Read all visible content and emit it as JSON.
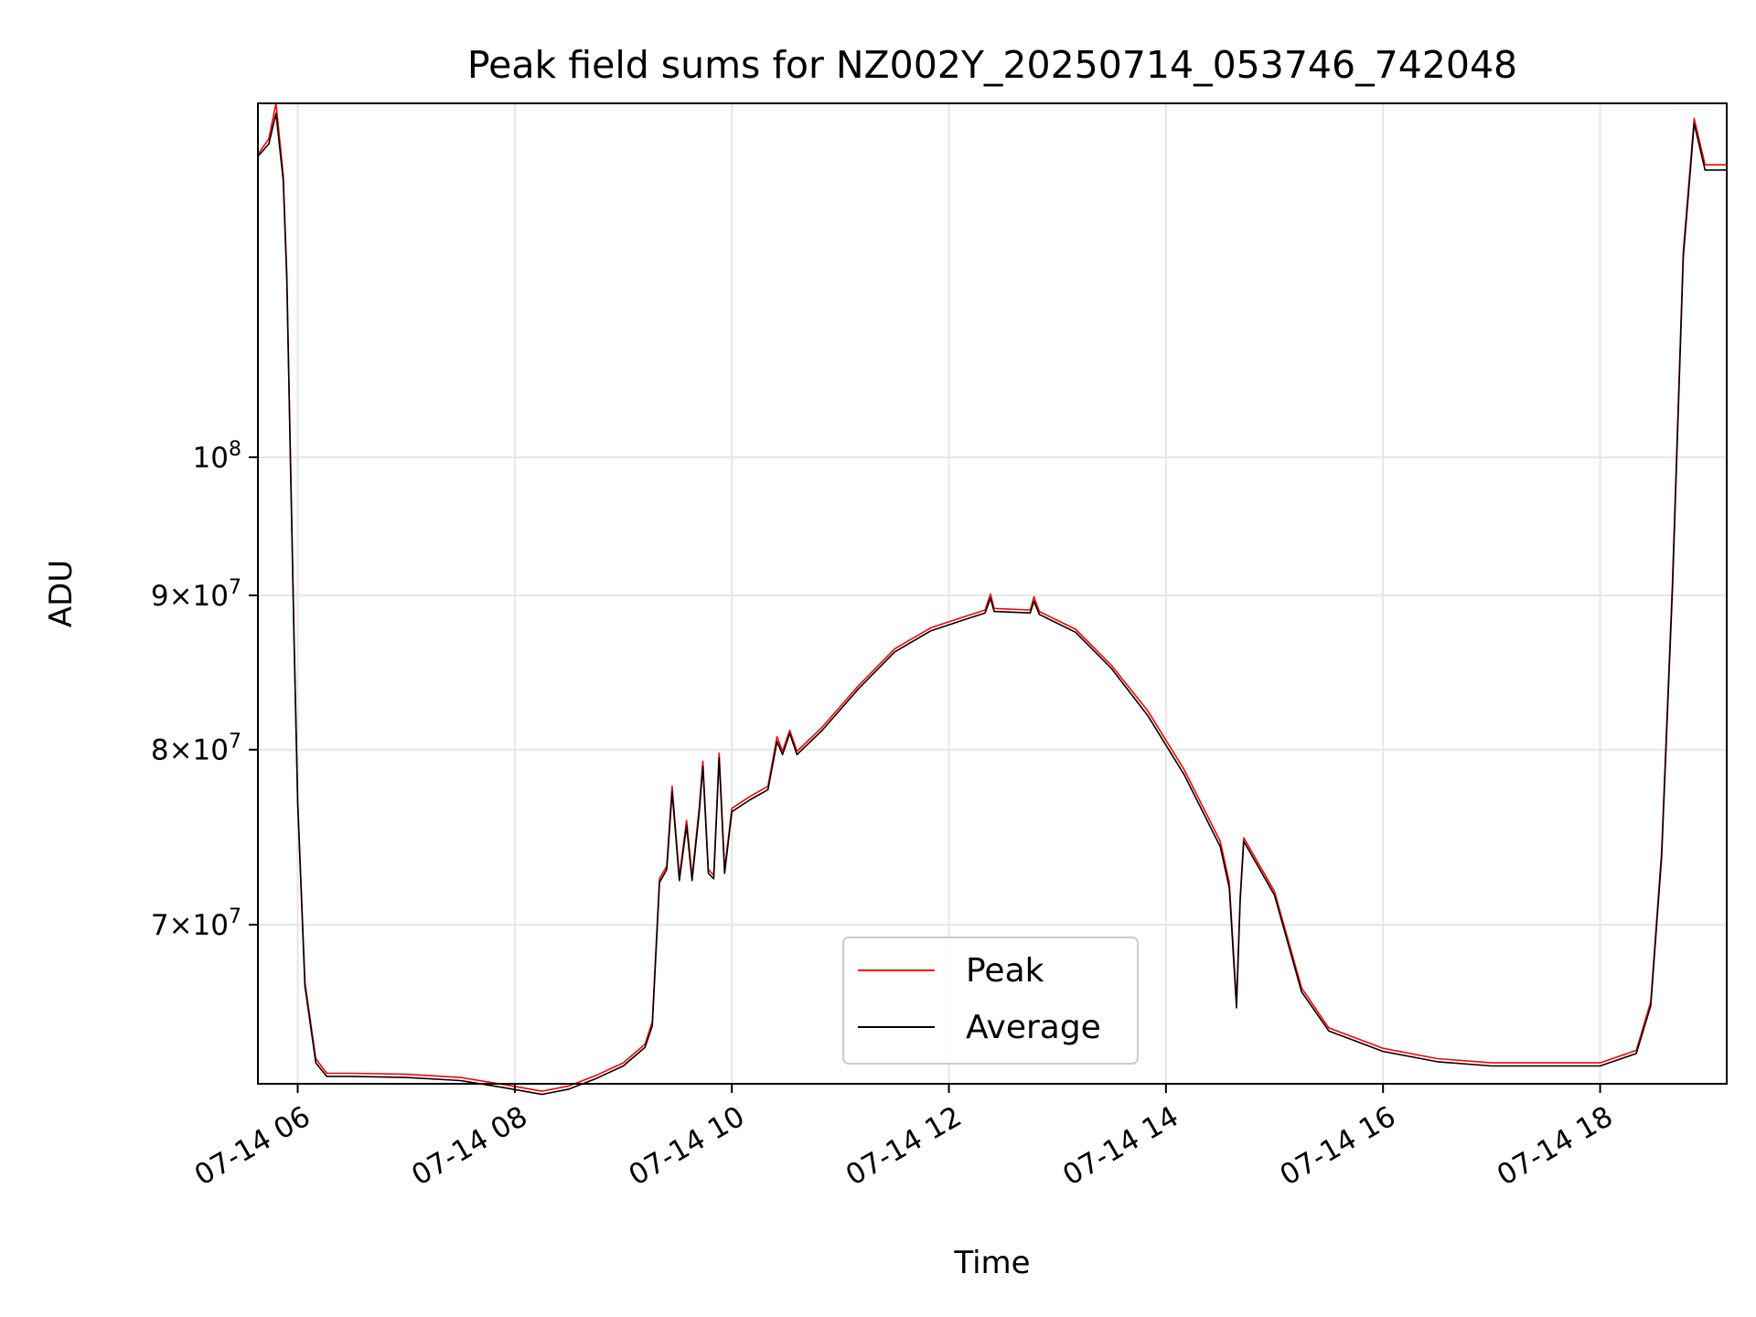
{
  "chart_data": {
    "type": "line",
    "title": "Peak field sums for NZ002Y_20250714_053746_742048",
    "xlabel": "Time",
    "ylabel": "ADU",
    "y_scale": "log",
    "ylim": [
      62000000,
      131000000
    ],
    "xlim": [
      "2025-07-14 05:38",
      "2025-07-14 19:10"
    ],
    "grid": true,
    "legend_position": "lower center",
    "x_ticks": [
      {
        "t": "2025-07-14 06:00",
        "label": "07-14 06"
      },
      {
        "t": "2025-07-14 08:00",
        "label": "07-14 08"
      },
      {
        "t": "2025-07-14 10:00",
        "label": "07-14 10"
      },
      {
        "t": "2025-07-14 12:00",
        "label": "07-14 12"
      },
      {
        "t": "2025-07-14 14:00",
        "label": "07-14 14"
      },
      {
        "t": "2025-07-14 16:00",
        "label": "07-14 16"
      },
      {
        "t": "2025-07-14 18:00",
        "label": "07-14 18"
      }
    ],
    "y_ticks": [
      {
        "v": 70000000,
        "mant": "7",
        "exp": "7"
      },
      {
        "v": 80000000,
        "mant": "8",
        "exp": "7"
      },
      {
        "v": 90000000,
        "mant": "9",
        "exp": "7"
      },
      {
        "v": 100000000,
        "mant": "",
        "exp": "8"
      }
    ],
    "series": [
      {
        "name": "Peak",
        "color": "#ff0000",
        "points": [
          [
            "2025-07-14 05:38",
            126000000
          ],
          [
            "2025-07-14 05:44",
            127500000
          ],
          [
            "2025-07-14 05:48",
            131000000
          ],
          [
            "2025-07-14 05:52",
            124000000
          ],
          [
            "2025-07-14 05:54",
            115000000
          ],
          [
            "2025-07-14 05:56",
            100000000
          ],
          [
            "2025-07-14 05:58",
            87000000
          ],
          [
            "2025-07-14 06:00",
            77000000
          ],
          [
            "2025-07-14 06:04",
            67000000
          ],
          [
            "2025-07-14 06:10",
            63200000
          ],
          [
            "2025-07-14 06:16",
            62500000
          ],
          [
            "2025-07-14 06:30",
            62500000
          ],
          [
            "2025-07-14 07:00",
            62450000
          ],
          [
            "2025-07-14 07:30",
            62300000
          ],
          [
            "2025-07-14 07:55",
            61950000
          ],
          [
            "2025-07-14 08:15",
            61650000
          ],
          [
            "2025-07-14 08:30",
            61900000
          ],
          [
            "2025-07-14 08:45",
            62400000
          ],
          [
            "2025-07-14 09:00",
            63000000
          ],
          [
            "2025-07-14 09:12",
            63900000
          ],
          [
            "2025-07-14 09:16",
            65000000
          ],
          [
            "2025-07-14 09:20",
            72500000
          ],
          [
            "2025-07-14 09:24",
            73200000
          ],
          [
            "2025-07-14 09:27",
            77800000
          ],
          [
            "2025-07-14 09:31",
            72600000
          ],
          [
            "2025-07-14 09:35",
            75800000
          ],
          [
            "2025-07-14 09:38",
            72600000
          ],
          [
            "2025-07-14 09:42",
            76600000
          ],
          [
            "2025-07-14 09:44",
            79300000
          ],
          [
            "2025-07-14 09:47",
            73000000
          ],
          [
            "2025-07-14 09:50",
            72700000
          ],
          [
            "2025-07-14 09:53",
            79800000
          ],
          [
            "2025-07-14 09:56",
            73000000
          ],
          [
            "2025-07-14 10:00",
            76500000
          ],
          [
            "2025-07-14 10:10",
            77200000
          ],
          [
            "2025-07-14 10:20",
            77800000
          ],
          [
            "2025-07-14 10:25",
            80800000
          ],
          [
            "2025-07-14 10:28",
            79900000
          ],
          [
            "2025-07-14 10:32",
            81200000
          ],
          [
            "2025-07-14 10:36",
            79900000
          ],
          [
            "2025-07-14 10:50",
            81400000
          ],
          [
            "2025-07-14 11:10",
            84000000
          ],
          [
            "2025-07-14 11:30",
            86400000
          ],
          [
            "2025-07-14 11:50",
            87800000
          ],
          [
            "2025-07-14 12:10",
            88600000
          ],
          [
            "2025-07-14 12:20",
            89000000
          ],
          [
            "2025-07-14 12:23",
            90100000
          ],
          [
            "2025-07-14 12:25",
            89100000
          ],
          [
            "2025-07-14 12:45",
            89000000
          ],
          [
            "2025-07-14 12:47",
            89900000
          ],
          [
            "2025-07-14 12:50",
            88900000
          ],
          [
            "2025-07-14 13:10",
            87700000
          ],
          [
            "2025-07-14 13:30",
            85300000
          ],
          [
            "2025-07-14 13:50",
            82400000
          ],
          [
            "2025-07-14 14:10",
            78800000
          ],
          [
            "2025-07-14 14:30",
            74600000
          ],
          [
            "2025-07-14 14:35",
            72300000
          ],
          [
            "2025-07-14 14:39",
            66000000
          ],
          [
            "2025-07-14 14:41",
            71500000
          ],
          [
            "2025-07-14 14:43",
            74800000
          ],
          [
            "2025-07-14 15:00",
            71800000
          ],
          [
            "2025-07-14 15:15",
            66700000
          ],
          [
            "2025-07-14 15:30",
            64700000
          ],
          [
            "2025-07-14 16:00",
            63700000
          ],
          [
            "2025-07-14 16:30",
            63200000
          ],
          [
            "2025-07-14 17:00",
            63000000
          ],
          [
            "2025-07-14 17:30",
            63000000
          ],
          [
            "2025-07-14 18:00",
            63000000
          ],
          [
            "2025-07-14 18:20",
            63600000
          ],
          [
            "2025-07-14 18:28",
            66000000
          ],
          [
            "2025-07-14 18:34",
            74000000
          ],
          [
            "2025-07-14 18:40",
            91000000
          ],
          [
            "2025-07-14 18:46",
            117000000
          ],
          [
            "2025-07-14 18:52",
            129500000
          ],
          [
            "2025-07-14 18:58",
            125000000
          ],
          [
            "2025-07-14 19:10",
            125000000
          ]
        ]
      },
      {
        "name": "Average",
        "color": "#000000",
        "points": [
          [
            "2025-07-14 05:38",
            125800000
          ],
          [
            "2025-07-14 05:44",
            127000000
          ],
          [
            "2025-07-14 05:48",
            130000000
          ],
          [
            "2025-07-14 05:52",
            123500000
          ],
          [
            "2025-07-14 05:54",
            114500000
          ],
          [
            "2025-07-14 05:56",
            99500000
          ],
          [
            "2025-07-14 05:58",
            86700000
          ],
          [
            "2025-07-14 06:00",
            76800000
          ],
          [
            "2025-07-14 06:04",
            66800000
          ],
          [
            "2025-07-14 06:10",
            63000000
          ],
          [
            "2025-07-14 06:16",
            62350000
          ],
          [
            "2025-07-14 06:30",
            62350000
          ],
          [
            "2025-07-14 07:00",
            62300000
          ],
          [
            "2025-07-14 07:30",
            62150000
          ],
          [
            "2025-07-14 07:55",
            61800000
          ],
          [
            "2025-07-14 08:15",
            61500000
          ],
          [
            "2025-07-14 08:30",
            61750000
          ],
          [
            "2025-07-14 08:45",
            62250000
          ],
          [
            "2025-07-14 09:00",
            62850000
          ],
          [
            "2025-07-14 09:12",
            63750000
          ],
          [
            "2025-07-14 09:16",
            64800000
          ],
          [
            "2025-07-14 09:20",
            72300000
          ],
          [
            "2025-07-14 09:24",
            73000000
          ],
          [
            "2025-07-14 09:27",
            77500000
          ],
          [
            "2025-07-14 09:31",
            72400000
          ],
          [
            "2025-07-14 09:35",
            75500000
          ],
          [
            "2025-07-14 09:38",
            72400000
          ],
          [
            "2025-07-14 09:42",
            76300000
          ],
          [
            "2025-07-14 09:44",
            79000000
          ],
          [
            "2025-07-14 09:47",
            72800000
          ],
          [
            "2025-07-14 09:50",
            72500000
          ],
          [
            "2025-07-14 09:53",
            79500000
          ],
          [
            "2025-07-14 09:56",
            72800000
          ],
          [
            "2025-07-14 10:00",
            76300000
          ],
          [
            "2025-07-14 10:10",
            77000000
          ],
          [
            "2025-07-14 10:20",
            77600000
          ],
          [
            "2025-07-14 10:25",
            80500000
          ],
          [
            "2025-07-14 10:28",
            79700000
          ],
          [
            "2025-07-14 10:32",
            81000000
          ],
          [
            "2025-07-14 10:36",
            79700000
          ],
          [
            "2025-07-14 10:50",
            81200000
          ],
          [
            "2025-07-14 11:10",
            83800000
          ],
          [
            "2025-07-14 11:30",
            86200000
          ],
          [
            "2025-07-14 11:50",
            87600000
          ],
          [
            "2025-07-14 12:10",
            88400000
          ],
          [
            "2025-07-14 12:20",
            88800000
          ],
          [
            "2025-07-14 12:23",
            89800000
          ],
          [
            "2025-07-14 12:25",
            88900000
          ],
          [
            "2025-07-14 12:45",
            88800000
          ],
          [
            "2025-07-14 12:47",
            89600000
          ],
          [
            "2025-07-14 12:50",
            88700000
          ],
          [
            "2025-07-14 13:10",
            87500000
          ],
          [
            "2025-07-14 13:30",
            85100000
          ],
          [
            "2025-07-14 13:50",
            82100000
          ],
          [
            "2025-07-14 14:10",
            78500000
          ],
          [
            "2025-07-14 14:30",
            74300000
          ],
          [
            "2025-07-14 14:35",
            72000000
          ],
          [
            "2025-07-14 14:39",
            65700000
          ],
          [
            "2025-07-14 14:41",
            71300000
          ],
          [
            "2025-07-14 14:43",
            74600000
          ],
          [
            "2025-07-14 15:00",
            71600000
          ],
          [
            "2025-07-14 15:15",
            66500000
          ],
          [
            "2025-07-14 15:30",
            64550000
          ],
          [
            "2025-07-14 16:00",
            63550000
          ],
          [
            "2025-07-14 16:30",
            63050000
          ],
          [
            "2025-07-14 17:00",
            62850000
          ],
          [
            "2025-07-14 17:30",
            62850000
          ],
          [
            "2025-07-14 18:00",
            62850000
          ],
          [
            "2025-07-14 18:20",
            63450000
          ],
          [
            "2025-07-14 18:28",
            65800000
          ],
          [
            "2025-07-14 18:34",
            73700000
          ],
          [
            "2025-07-14 18:40",
            90500000
          ],
          [
            "2025-07-14 18:46",
            116500000
          ],
          [
            "2025-07-14 18:52",
            129000000
          ],
          [
            "2025-07-14 18:58",
            124500000
          ],
          [
            "2025-07-14 19:10",
            124500000
          ]
        ]
      }
    ]
  }
}
